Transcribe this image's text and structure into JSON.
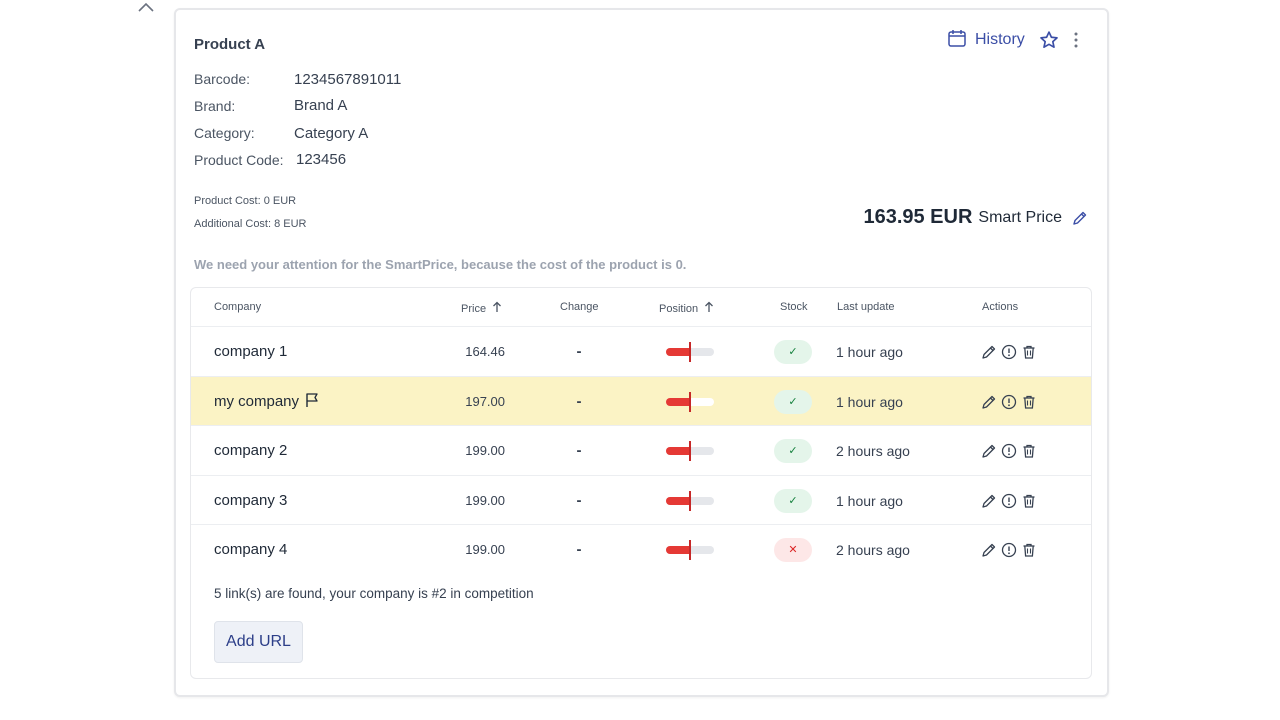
{
  "product": {
    "title": "Product A",
    "fields": [
      {
        "label": "Barcode:",
        "value": "1234567891011"
      },
      {
        "label": "Brand:",
        "value": "Brand A"
      },
      {
        "label": "Category:",
        "value": "Category A"
      },
      {
        "label": "Product Code:",
        "value": "123456"
      }
    ],
    "product_cost": "Product Cost: 0 EUR",
    "additional_cost": "Additional Cost: 8 EUR"
  },
  "header": {
    "history_label": "History"
  },
  "pricing": {
    "price": "163.95 EUR",
    "label": "Smart Price"
  },
  "attention_message": "We need your attention for the SmartPrice, because the cost of the product is 0.",
  "table": {
    "headers": {
      "company": "Company",
      "price": "Price",
      "change": "Change",
      "position": "Position",
      "stock": "Stock",
      "last_update": "Last update",
      "actions": "Actions"
    },
    "rows": [
      {
        "company": "company 1",
        "price": "164.46",
        "change": "-",
        "position_level": 0.5,
        "in_stock": true,
        "stock_symbol": "✓",
        "updated": "1 hour ago",
        "flag": false
      },
      {
        "company": "my company",
        "price": "197.00",
        "change": "-",
        "position_level": 0.5,
        "in_stock": true,
        "stock_symbol": "✓",
        "updated": "1 hour ago",
        "flag": true
      },
      {
        "company": "company 2",
        "price": "199.00",
        "change": "-",
        "position_level": 0.5,
        "in_stock": true,
        "stock_symbol": "✓",
        "updated": "2 hours ago",
        "flag": false
      },
      {
        "company": "company 3",
        "price": "199.00",
        "change": "-",
        "position_level": 0.5,
        "in_stock": true,
        "stock_symbol": "✓",
        "updated": "1 hour ago",
        "flag": false
      },
      {
        "company": "company 4",
        "price": "199.00",
        "change": "-",
        "position_level": 0.5,
        "in_stock": false,
        "stock_symbol": "✕",
        "updated": "2 hours ago",
        "flag": false
      }
    ],
    "summary": "5 link(s) are found, your company is  #2  in competition",
    "add_url_label": "Add URL"
  },
  "colors": {
    "accent": "#3b4ea6",
    "highlight_row": "#fbf3c5",
    "position_red": "#e53935",
    "stock_ok": "#15803d",
    "stock_out": "#dc2626"
  },
  "icons": {
    "collapse": "chevron-up-icon",
    "history": "calendar-icon",
    "favorite": "star-icon",
    "more": "more-vertical-icon",
    "edit": "pencil-icon",
    "info": "exclamation-circle-icon",
    "delete": "trash-icon",
    "flag": "flag-icon",
    "sort": "arrow-up-icon"
  }
}
